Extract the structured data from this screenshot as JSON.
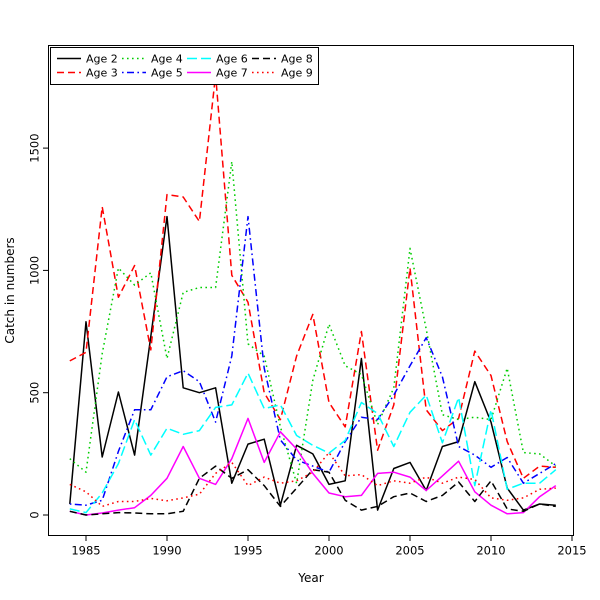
{
  "chart_data": {
    "type": "line",
    "title": "",
    "xlabel": "Year",
    "ylabel": "Catch in numbers",
    "x_ticks": [
      1985,
      1990,
      1995,
      2000,
      2005,
      2010,
      2015
    ],
    "y_ticks": [
      0,
      500,
      1000,
      1500
    ],
    "xlim": [
      1984,
      2015
    ],
    "ylim": [
      0,
      1920
    ],
    "grid": false,
    "legend_position": "top-left",
    "x": [
      1984,
      1985,
      1986,
      1987,
      1988,
      1989,
      1990,
      1991,
      1992,
      1993,
      1994,
      1995,
      1996,
      1997,
      1998,
      1999,
      2000,
      2001,
      2002,
      2003,
      2004,
      2005,
      2006,
      2007,
      2008,
      2009,
      2010,
      2011,
      2012,
      2013,
      2014
    ],
    "series": [
      {
        "name": "Age 2",
        "color": "#000000",
        "linestyle": "solid",
        "values": [
          45,
          790,
          237,
          503,
          245,
          730,
          1220,
          520,
          500,
          520,
          130,
          290,
          310,
          40,
          285,
          250,
          125,
          140,
          640,
          20,
          190,
          215,
          100,
          280,
          300,
          545,
          380,
          110,
          20,
          45,
          40
        ]
      },
      {
        "name": "Age 3",
        "color": "#ff0000",
        "linestyle": "dashed",
        "values": [
          630,
          665,
          1260,
          890,
          1020,
          675,
          1310,
          1300,
          1200,
          1800,
          980,
          870,
          500,
          390,
          650,
          820,
          460,
          360,
          750,
          265,
          450,
          1010,
          430,
          345,
          395,
          670,
          570,
          300,
          150,
          200,
          195
        ]
      },
      {
        "name": "Age 4",
        "color": "#00cd00",
        "linestyle": "dotted",
        "values": [
          230,
          175,
          660,
          1010,
          940,
          990,
          640,
          910,
          930,
          930,
          1445,
          700,
          650,
          360,
          130,
          550,
          780,
          610,
          575,
          370,
          520,
          1090,
          760,
          410,
          390,
          400,
          390,
          600,
          255,
          250,
          200
        ]
      },
      {
        "name": "Age 5",
        "color": "#0000ff",
        "linestyle": "dashdot",
        "values": [
          45,
          40,
          60,
          260,
          430,
          430,
          565,
          590,
          545,
          380,
          650,
          1220,
          600,
          307,
          225,
          200,
          175,
          300,
          400,
          390,
          490,
          610,
          725,
          565,
          280,
          245,
          195,
          235,
          130,
          170,
          210
        ]
      },
      {
        "name": "Age 6",
        "color": "#00ffff",
        "linestyle": "longdash",
        "values": [
          25,
          10,
          90,
          210,
          390,
          245,
          355,
          330,
          345,
          440,
          450,
          580,
          435,
          450,
          325,
          285,
          253,
          305,
          460,
          415,
          280,
          420,
          490,
          295,
          480,
          120,
          430,
          105,
          130,
          130,
          185
        ]
      },
      {
        "name": "Age 7",
        "color": "#ff00ff",
        "linestyle": "solid",
        "values": [
          15,
          0,
          8,
          20,
          30,
          80,
          150,
          280,
          150,
          125,
          230,
          395,
          215,
          340,
          270,
          170,
          90,
          75,
          80,
          170,
          175,
          155,
          100,
          160,
          220,
          95,
          40,
          5,
          10,
          75,
          120
        ]
      },
      {
        "name": "Age 8",
        "color": "#000000",
        "linestyle": "dashed",
        "values": [
          15,
          0,
          5,
          10,
          8,
          5,
          5,
          15,
          150,
          200,
          150,
          185,
          120,
          35,
          110,
          185,
          175,
          60,
          20,
          35,
          75,
          90,
          55,
          80,
          135,
          55,
          140,
          25,
          15,
          45,
          35
        ]
      },
      {
        "name": "Age 9",
        "color": "#ff0000",
        "linestyle": "dotted",
        "values": [
          125,
          95,
          35,
          55,
          55,
          68,
          58,
          70,
          85,
          170,
          215,
          120,
          155,
          130,
          140,
          175,
          255,
          160,
          165,
          120,
          140,
          130,
          155,
          130,
          155,
          145,
          70,
          60,
          70,
          105,
          110
        ]
      }
    ],
    "legend_rows": [
      [
        "Age 2",
        "Age 4",
        "Age 6",
        "Age 8"
      ],
      [
        "Age 3",
        "Age 5",
        "Age 7",
        "Age 9"
      ]
    ]
  },
  "layout_colors": {
    "background": "#ffffff",
    "axis": "#000000"
  }
}
